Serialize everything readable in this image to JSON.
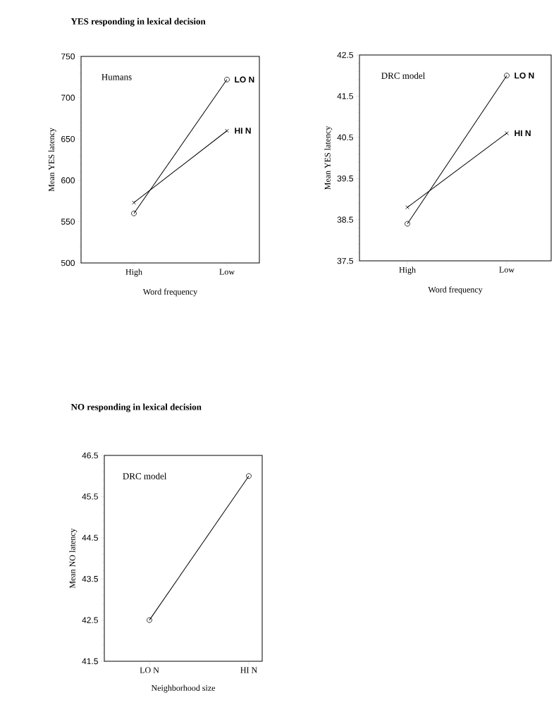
{
  "chart_data": [
    {
      "type": "line",
      "title": "YES responding in lexical decision",
      "xlabel": "Word frequency",
      "ylabel": "Mean YES latency",
      "categories": [
        "High",
        "Low"
      ],
      "series": [
        {
          "name": "LO N",
          "color": "#000000",
          "marker": "circle",
          "values": [
            560,
            722
          ]
        },
        {
          "name": "HI N",
          "color": "#000000",
          "marker": "cross",
          "values": [
            573,
            660
          ]
        }
      ],
      "ylim": [
        500,
        750
      ],
      "yticks": [
        500,
        550,
        600,
        650,
        700,
        750
      ],
      "annotations": [
        "Humans"
      ],
      "line_style": "solid"
    },
    {
      "type": "line",
      "xlabel": "Word frequency",
      "ylabel": "Mean YES latency",
      "categories": [
        "High",
        "Low"
      ],
      "series": [
        {
          "name": "LO N",
          "color": "#000000",
          "marker": "circle",
          "values": [
            38.4,
            42.0
          ]
        },
        {
          "name": "HI N",
          "color": "#000000",
          "marker": "cross",
          "values": [
            38.8,
            40.6
          ]
        }
      ],
      "ylim": [
        37.5,
        42.5
      ],
      "yticks": [
        37.5,
        38.5,
        39.5,
        40.5,
        41.5,
        42.5
      ],
      "annotations": [
        "DRC model"
      ],
      "line_style": "solid"
    },
    {
      "type": "line",
      "title": "NO responding in lexical decision",
      "xlabel": "Neighborhood size",
      "ylabel": "Mean NO latency",
      "categories": [
        "LO N",
        "HI N"
      ],
      "series": [
        {
          "color": "#000000",
          "marker": "circle",
          "values": [
            42.5,
            46.0
          ]
        }
      ],
      "ylim": [
        41.5,
        46.5
      ],
      "yticks": [
        41.5,
        42.5,
        43.5,
        44.5,
        45.5,
        46.5
      ],
      "annotations": [
        "DRC model"
      ],
      "line_style": "solid"
    }
  ]
}
